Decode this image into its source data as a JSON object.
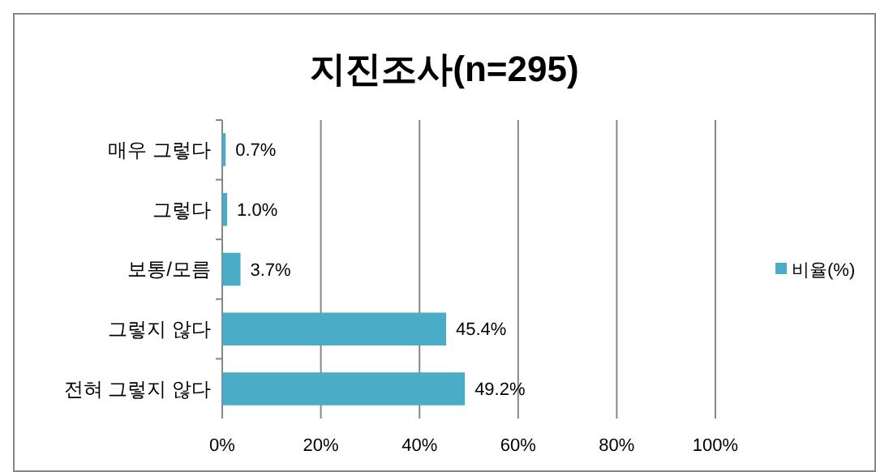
{
  "chart_data": {
    "type": "bar",
    "orientation": "horizontal",
    "title": "지진조사(n=295)",
    "categories": [
      "매우 그렇다",
      "그렇다",
      "보통/모름",
      "그렇지 않다",
      "전혀 그렇지 않다"
    ],
    "series": [
      {
        "name": "비율(%)",
        "color": "#4bacc6",
        "values": [
          0.7,
          1.0,
          3.7,
          45.4,
          49.2
        ],
        "value_labels": [
          "0.7%",
          "1.0%",
          "3.7%",
          "45.4%",
          "49.2%"
        ]
      }
    ],
    "xlim": [
      0,
      100
    ],
    "xticks": [
      {
        "value": 0,
        "label": "0%"
      },
      {
        "value": 20,
        "label": "20%"
      },
      {
        "value": 40,
        "label": "40%"
      },
      {
        "value": 60,
        "label": "60%"
      },
      {
        "value": 80,
        "label": "80%"
      },
      {
        "value": 100,
        "label": "100%"
      }
    ],
    "grid": "x",
    "legend": "right"
  }
}
